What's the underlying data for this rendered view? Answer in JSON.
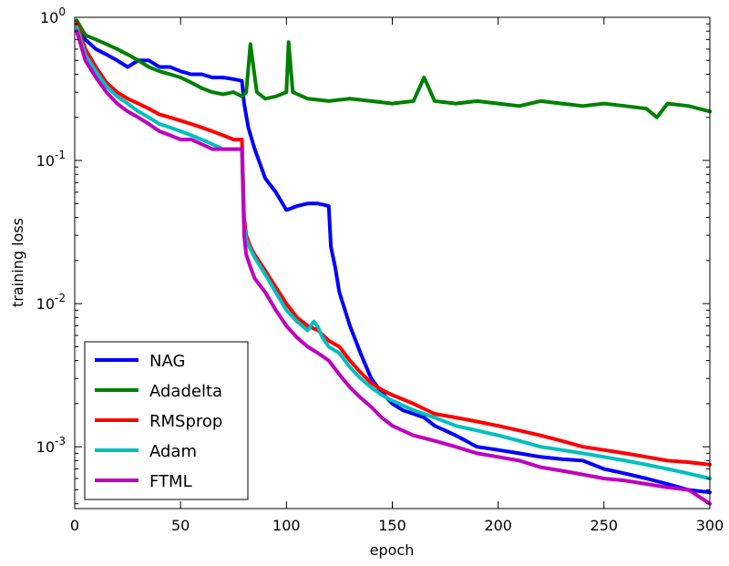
{
  "chart_data": {
    "type": "line",
    "xlabel": "epoch",
    "ylabel": "training loss",
    "xlim": [
      0,
      300
    ],
    "ylim": [
      0.00037,
      1.0
    ],
    "yscale": "log",
    "x_ticks": [
      0,
      50,
      100,
      150,
      200,
      250,
      300
    ],
    "y_ticks": [
      {
        "value": 1,
        "base": "10",
        "exp": "0"
      },
      {
        "value": 0.1,
        "base": "10",
        "exp": "-1"
      },
      {
        "value": 0.01,
        "base": "10",
        "exp": "-2"
      },
      {
        "value": 0.001,
        "base": "10",
        "exp": "-3"
      }
    ],
    "grid": false,
    "legend_position": "lower-left",
    "series": [
      {
        "name": "NAG",
        "color": "#0000ff",
        "x": [
          1,
          5,
          10,
          15,
          20,
          25,
          30,
          35,
          40,
          45,
          50,
          55,
          60,
          65,
          70,
          75,
          79,
          80,
          82,
          85,
          90,
          95,
          100,
          105,
          110,
          115,
          120,
          121,
          123,
          125,
          130,
          135,
          140,
          145,
          150,
          155,
          160,
          165,
          170,
          180,
          190,
          200,
          210,
          220,
          230,
          240,
          250,
          260,
          270,
          280,
          290,
          300
        ],
        "y": [
          0.95,
          0.7,
          0.6,
          0.55,
          0.5,
          0.45,
          0.5,
          0.5,
          0.45,
          0.45,
          0.42,
          0.4,
          0.4,
          0.38,
          0.38,
          0.37,
          0.36,
          0.25,
          0.17,
          0.12,
          0.075,
          0.06,
          0.045,
          0.048,
          0.05,
          0.05,
          0.048,
          0.025,
          0.018,
          0.012,
          0.007,
          0.0045,
          0.003,
          0.0024,
          0.002,
          0.0018,
          0.0017,
          0.0016,
          0.0014,
          0.0012,
          0.001,
          0.00095,
          0.0009,
          0.00085,
          0.00082,
          0.0008,
          0.0007,
          0.00065,
          0.0006,
          0.00055,
          0.0005,
          0.00048
        ]
      },
      {
        "name": "Adadelta",
        "color": "#008000",
        "x": [
          1,
          5,
          10,
          15,
          20,
          25,
          30,
          35,
          40,
          45,
          50,
          55,
          60,
          65,
          70,
          75,
          79,
          81,
          83,
          86,
          90,
          95,
          100,
          101,
          103,
          110,
          120,
          130,
          140,
          150,
          160,
          165,
          170,
          180,
          190,
          200,
          210,
          220,
          230,
          240,
          250,
          260,
          270,
          275,
          280,
          290,
          300
        ],
        "y": [
          0.95,
          0.75,
          0.7,
          0.65,
          0.6,
          0.55,
          0.5,
          0.45,
          0.42,
          0.4,
          0.38,
          0.35,
          0.32,
          0.3,
          0.29,
          0.3,
          0.28,
          0.3,
          0.65,
          0.3,
          0.27,
          0.28,
          0.3,
          0.67,
          0.3,
          0.27,
          0.26,
          0.27,
          0.26,
          0.25,
          0.26,
          0.38,
          0.26,
          0.25,
          0.26,
          0.25,
          0.24,
          0.26,
          0.25,
          0.24,
          0.25,
          0.24,
          0.23,
          0.2,
          0.25,
          0.24,
          0.22
        ]
      },
      {
        "name": "RMSprop",
        "color": "#ff0000",
        "x": [
          1,
          5,
          10,
          15,
          20,
          25,
          30,
          35,
          40,
          45,
          50,
          55,
          60,
          65,
          70,
          75,
          79,
          80,
          81,
          83,
          85,
          90,
          95,
          100,
          105,
          110,
          115,
          120,
          125,
          130,
          135,
          140,
          145,
          150,
          160,
          170,
          180,
          190,
          200,
          210,
          220,
          230,
          240,
          250,
          260,
          270,
          280,
          290,
          300
        ],
        "y": [
          0.9,
          0.6,
          0.45,
          0.35,
          0.3,
          0.27,
          0.25,
          0.23,
          0.21,
          0.2,
          0.19,
          0.18,
          0.17,
          0.16,
          0.15,
          0.14,
          0.14,
          0.04,
          0.03,
          0.025,
          0.022,
          0.017,
          0.013,
          0.01,
          0.008,
          0.007,
          0.0065,
          0.0055,
          0.005,
          0.004,
          0.0033,
          0.0028,
          0.0025,
          0.0023,
          0.002,
          0.0017,
          0.0016,
          0.0015,
          0.0014,
          0.0013,
          0.0012,
          0.0011,
          0.001,
          0.00095,
          0.0009,
          0.00085,
          0.0008,
          0.00078,
          0.00075
        ]
      },
      {
        "name": "Adam",
        "color": "#00bfbf",
        "x": [
          1,
          5,
          10,
          15,
          20,
          25,
          30,
          35,
          40,
          45,
          50,
          55,
          60,
          65,
          70,
          75,
          79,
          80,
          81,
          83,
          85,
          90,
          95,
          100,
          105,
          110,
          113,
          115,
          117,
          120,
          125,
          130,
          135,
          140,
          145,
          150,
          160,
          170,
          180,
          190,
          200,
          210,
          220,
          230,
          240,
          250,
          260,
          270,
          280,
          290,
          300
        ],
        "y": [
          0.85,
          0.55,
          0.42,
          0.33,
          0.28,
          0.25,
          0.22,
          0.2,
          0.18,
          0.17,
          0.16,
          0.15,
          0.14,
          0.13,
          0.12,
          0.12,
          0.12,
          0.035,
          0.028,
          0.024,
          0.021,
          0.016,
          0.012,
          0.009,
          0.0075,
          0.0065,
          0.0075,
          0.0068,
          0.0058,
          0.005,
          0.0045,
          0.0036,
          0.003,
          0.0026,
          0.0023,
          0.0021,
          0.0018,
          0.0016,
          0.0014,
          0.0013,
          0.0012,
          0.0011,
          0.001,
          0.00095,
          0.0009,
          0.00085,
          0.0008,
          0.00075,
          0.0007,
          0.00065,
          0.0006
        ]
      },
      {
        "name": "FTML",
        "color": "#bf00bf",
        "x": [
          1,
          5,
          10,
          15,
          20,
          25,
          30,
          35,
          40,
          45,
          50,
          55,
          60,
          65,
          70,
          75,
          79,
          80,
          81,
          83,
          85,
          90,
          95,
          100,
          105,
          110,
          115,
          120,
          125,
          130,
          135,
          140,
          145,
          150,
          160,
          170,
          180,
          190,
          200,
          210,
          220,
          230,
          240,
          250,
          260,
          270,
          280,
          290,
          300
        ],
        "y": [
          0.8,
          0.5,
          0.38,
          0.3,
          0.25,
          0.22,
          0.2,
          0.18,
          0.16,
          0.15,
          0.14,
          0.14,
          0.13,
          0.12,
          0.12,
          0.12,
          0.12,
          0.03,
          0.022,
          0.018,
          0.015,
          0.012,
          0.009,
          0.007,
          0.0058,
          0.005,
          0.0045,
          0.004,
          0.0032,
          0.0026,
          0.0022,
          0.0019,
          0.0016,
          0.0014,
          0.0012,
          0.0011,
          0.001,
          0.0009,
          0.00085,
          0.0008,
          0.00072,
          0.00068,
          0.00064,
          0.0006,
          0.00058,
          0.00055,
          0.00052,
          0.0005,
          0.0004
        ]
      }
    ]
  }
}
